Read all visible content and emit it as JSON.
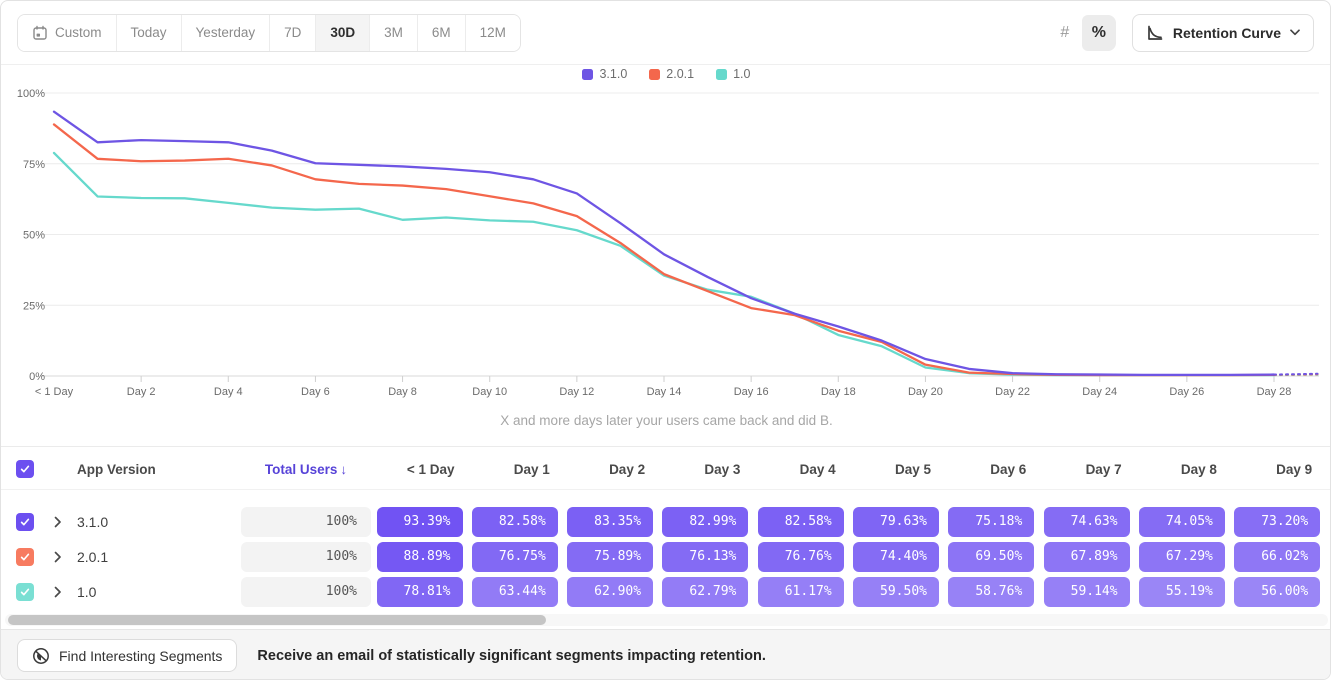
{
  "toolbar": {
    "date_ranges": [
      {
        "label": "Custom",
        "has_calendar_icon": true,
        "active": false
      },
      {
        "label": "Today",
        "active": false
      },
      {
        "label": "Yesterday",
        "active": false
      },
      {
        "label": "7D",
        "active": false
      },
      {
        "label": "30D",
        "active": true
      },
      {
        "label": "3M",
        "active": false
      },
      {
        "label": "6M",
        "active": false
      },
      {
        "label": "12M",
        "active": false
      }
    ],
    "format_toggle": {
      "number_label": "#",
      "percent_label": "%",
      "active": "percent"
    },
    "view_selector": {
      "label": "Retention Curve",
      "icon": "retention-curve-icon"
    }
  },
  "chart_data": {
    "type": "line",
    "subtitle": "X and more days later your users came back and did B.",
    "ylim": [
      0,
      100
    ],
    "yticks": [
      0,
      25,
      50,
      75,
      100
    ],
    "ytick_labels": [
      "0%",
      "25%",
      "50%",
      "75%",
      "100%"
    ],
    "xtick_labels": [
      "< 1 Day",
      "Day 2",
      "Day 4",
      "Day 6",
      "Day 8",
      "Day 10",
      "Day 12",
      "Day 14",
      "Day 16",
      "Day 18",
      "Day 20",
      "Day 22",
      "Day 24",
      "Day 26",
      "Day 28"
    ],
    "xtick_day_step": 2,
    "grid": true,
    "legend_position": "top-center",
    "x_days": [
      0,
      1,
      2,
      3,
      4,
      5,
      6,
      7,
      8,
      9,
      10,
      11,
      12,
      13,
      14,
      15,
      16,
      17,
      18,
      19,
      20,
      21,
      22,
      23,
      24,
      25,
      26,
      27,
      28,
      29
    ],
    "dashed_from_day": 28,
    "series": [
      {
        "name": "1.0",
        "color": "#66d9cc",
        "values": [
          78.81,
          63.44,
          62.9,
          62.79,
          61.17,
          59.5,
          58.76,
          59.14,
          55.19,
          56.0,
          55.0,
          54.5,
          51.5,
          46.0,
          35.5,
          30.5,
          28.0,
          22.0,
          14.5,
          10.5,
          3.0,
          1.0,
          0.5,
          0.3,
          0.3,
          0.3,
          0.3,
          0.3,
          0.3,
          0.5
        ]
      },
      {
        "name": "2.0.1",
        "color": "#f4674c",
        "values": [
          88.89,
          76.75,
          75.89,
          76.13,
          76.76,
          74.4,
          69.5,
          67.89,
          67.29,
          66.02,
          63.5,
          61.0,
          56.5,
          47.0,
          36.0,
          30.0,
          24.0,
          21.5,
          16.0,
          12.0,
          4.0,
          1.2,
          0.7,
          0.4,
          0.3,
          0.3,
          0.3,
          0.3,
          0.4,
          0.6
        ]
      },
      {
        "name": "3.1.0",
        "color": "#6e55e4",
        "values": [
          93.39,
          82.58,
          83.35,
          82.99,
          82.58,
          79.63,
          75.18,
          74.63,
          74.05,
          73.2,
          72.0,
          69.5,
          64.5,
          54.0,
          43.0,
          35.0,
          27.5,
          22.0,
          17.5,
          12.5,
          6.0,
          2.5,
          1.0,
          0.6,
          0.5,
          0.4,
          0.4,
          0.4,
          0.5,
          0.8
        ]
      }
    ],
    "legend_order": [
      "3.1.0",
      "2.0.1",
      "1.0"
    ]
  },
  "table": {
    "header": {
      "app_version_label": "App Version",
      "total_users_label": "Total Users",
      "total_users_sort_icon": "↓",
      "day_columns": [
        "< 1 Day",
        "Day 1",
        "Day 2",
        "Day 3",
        "Day 4",
        "Day 5",
        "Day 6",
        "Day 7",
        "Day 8",
        "Day 9"
      ],
      "checkbox_checked": true,
      "checkbox_color": "#6c4ff0"
    },
    "pill_base_rgb": [
      105,
      74,
      242
    ],
    "rows": [
      {
        "label": "3.1.0",
        "checkbox_color": "#6c4ff0",
        "total_users": "100%",
        "values": [
          "93.39%",
          "82.58%",
          "83.35%",
          "82.99%",
          "82.58%",
          "79.63%",
          "75.18%",
          "74.63%",
          "74.05%",
          "73.20%"
        ],
        "numeric": [
          93.39,
          82.58,
          83.35,
          82.99,
          82.58,
          79.63,
          75.18,
          74.63,
          74.05,
          73.2
        ]
      },
      {
        "label": "2.0.1",
        "checkbox_color": "#f77b60",
        "total_users": "100%",
        "values": [
          "88.89%",
          "76.75%",
          "75.89%",
          "76.13%",
          "76.76%",
          "74.40%",
          "69.50%",
          "67.89%",
          "67.29%",
          "66.02%"
        ],
        "numeric": [
          88.89,
          76.75,
          75.89,
          76.13,
          76.76,
          74.4,
          69.5,
          67.89,
          67.29,
          66.02
        ]
      },
      {
        "label": "1.0",
        "checkbox_color": "#7adfd3",
        "total_users": "100%",
        "values": [
          "78.81%",
          "63.44%",
          "62.90%",
          "62.79%",
          "61.17%",
          "59.50%",
          "58.76%",
          "59.14%",
          "55.19%",
          "56.00%"
        ],
        "numeric": [
          78.81,
          63.44,
          62.9,
          62.79,
          61.17,
          59.5,
          58.76,
          59.14,
          55.19,
          56.0
        ]
      }
    ]
  },
  "footer": {
    "button_label": "Find Interesting Segments",
    "button_icon": "segments-icon",
    "message": "Receive an email of statistically significant segments impacting retention."
  }
}
